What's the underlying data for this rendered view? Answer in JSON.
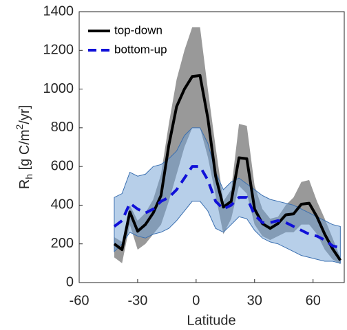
{
  "chart_data": {
    "type": "line-band",
    "x_label": "Latitude",
    "y_label": {
      "parts": [
        "R",
        "h",
        " [g C/m",
        "2",
        "/yr]"
      ]
    },
    "xlim": [
      -60,
      76
    ],
    "xticks": [
      -60,
      -30,
      0,
      30,
      60
    ],
    "ylim": [
      0,
      1400
    ],
    "yticks": [
      0,
      200,
      400,
      600,
      800,
      1000,
      1200,
      1400
    ],
    "legend": "upper-left",
    "x": [
      -42,
      -38,
      -34,
      -30,
      -26,
      -22,
      -18,
      -14,
      -10,
      -6,
      -2,
      2,
      6,
      10,
      14,
      18,
      22,
      26,
      30,
      34,
      38,
      42,
      46,
      50,
      54,
      58,
      62,
      66,
      70,
      74
    ],
    "series": [
      {
        "name": "top-down",
        "color": "#000000",
        "dash": false,
        "band_color": "#7f7f7f",
        "values": [
          200,
          170,
          365,
          265,
          300,
          360,
          450,
          710,
          910,
          1000,
          1065,
          1070,
          850,
          550,
          390,
          420,
          645,
          640,
          380,
          305,
          280,
          305,
          350,
          355,
          405,
          410,
          340,
          250,
          175,
          115
        ],
        "upper": [
          235,
          210,
          400,
          320,
          360,
          430,
          560,
          820,
          1050,
          1200,
          1320,
          1320,
          1000,
          700,
          420,
          480,
          820,
          810,
          500,
          380,
          330,
          340,
          400,
          440,
          520,
          530,
          420,
          330,
          230,
          130
        ],
        "lower": [
          130,
          100,
          300,
          170,
          200,
          250,
          300,
          420,
          560,
          700,
          800,
          800,
          650,
          450,
          250,
          330,
          500,
          460,
          300,
          240,
          220,
          240,
          260,
          260,
          300,
          300,
          250,
          170,
          120,
          95
        ]
      },
      {
        "name": "bottom-up",
        "color": "#1010d8",
        "dash": true,
        "band_color": "#6f9fd4",
        "values": [
          290,
          320,
          410,
          380,
          360,
          380,
          420,
          440,
          480,
          540,
          600,
          600,
          530,
          420,
          380,
          400,
          440,
          440,
          350,
          310,
          310,
          320,
          310,
          290,
          270,
          250,
          240,
          220,
          190,
          180
        ],
        "upper": [
          440,
          460,
          570,
          550,
          560,
          600,
          610,
          640,
          680,
          760,
          800,
          800,
          720,
          570,
          480,
          520,
          540,
          510,
          480,
          450,
          430,
          420,
          410,
          400,
          380,
          360,
          340,
          320,
          300,
          290
        ],
        "lower": [
          160,
          200,
          260,
          240,
          230,
          250,
          260,
          280,
          320,
          370,
          420,
          420,
          370,
          280,
          260,
          300,
          340,
          330,
          270,
          230,
          210,
          200,
          180,
          160,
          140,
          130,
          120,
          110,
          110,
          100
        ]
      }
    ]
  }
}
